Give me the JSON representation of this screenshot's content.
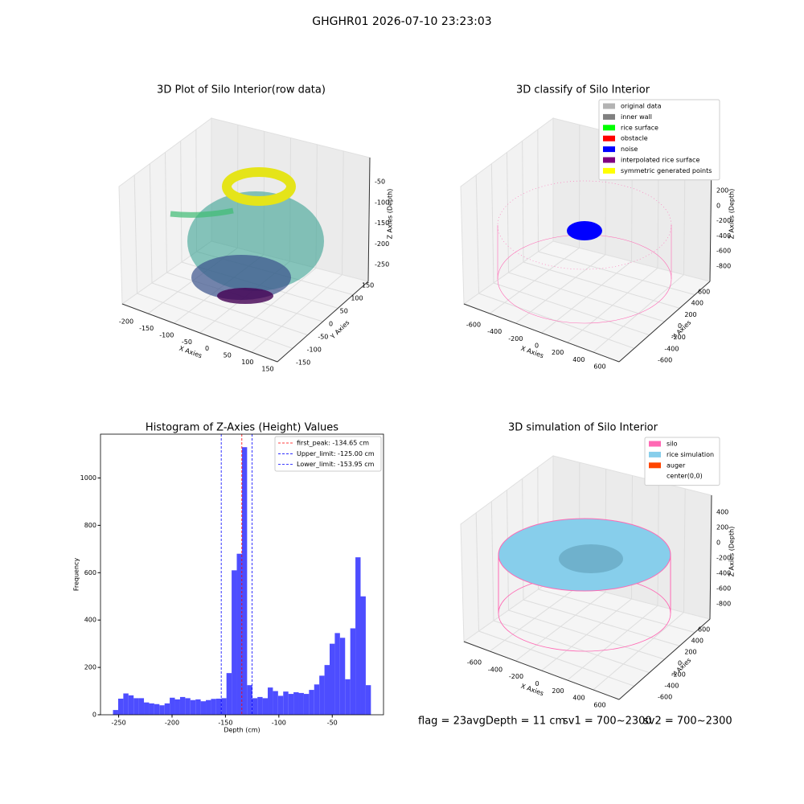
{
  "title": "GHGHR01 2026-07-10 23:23:03",
  "status": [
    "flag = 23",
    "avgDepth = 11 cm",
    "sv1 = 700~2300",
    "sv2 = 700~2300"
  ],
  "chart_data": [
    {
      "type": "scatter3d",
      "title": "3D Plot of Silo Interior(row data)",
      "xlabel": "X Axies",
      "ylabel": "Y Axies",
      "zlabel": "Z Axies (Depth)",
      "xticks": [
        -200,
        -150,
        -100,
        -50,
        0,
        50,
        100,
        150
      ],
      "yticks": [
        150,
        100,
        50,
        0,
        -50,
        -100,
        -150
      ],
      "zticks": [
        -50,
        -100,
        -150,
        -200,
        -250
      ]
    },
    {
      "type": "scatter3d",
      "title": "3D classify of Silo Interior",
      "xlabel": "X Axies",
      "ylabel": "Y Axies",
      "zlabel": "Z Axies (Depth)",
      "xticks": [
        -600,
        -400,
        -200,
        0,
        200,
        400,
        600
      ],
      "yticks": [
        600,
        400,
        200,
        0,
        -200,
        -400,
        -600
      ],
      "zticks": [
        200,
        0,
        -200,
        -400,
        -600,
        -800
      ],
      "legend": [
        {
          "name": "original data",
          "color": "#b3b3b3"
        },
        {
          "name": "inner wall",
          "color": "#808080"
        },
        {
          "name": "rice surface",
          "color": "#00ff00"
        },
        {
          "name": "obstacle",
          "color": "#ff0000"
        },
        {
          "name": "noise",
          "color": "#0000ff"
        },
        {
          "name": "interpolated rice surface",
          "color": "#800080"
        },
        {
          "name": "symmetric generated points",
          "color": "#ffff00"
        }
      ]
    },
    {
      "type": "histogram",
      "title": "Histogram of Z-Axies (Height) Values",
      "xlabel": "Depth (cm)",
      "ylabel": "Frequency",
      "color": "#4d4dff",
      "bins": [
        -255.3,
        -250.47,
        -245.64,
        -240.81,
        -235.98,
        -231.15,
        -226.32,
        -221.49,
        -216.66,
        -211.83,
        -207.0,
        -202.17,
        -197.34,
        -192.51,
        -187.68,
        -182.85,
        -178.02,
        -173.19,
        -168.36,
        -163.53,
        -158.7,
        -153.87,
        -149.04,
        -144.21,
        -139.38,
        -134.55,
        -129.72,
        -124.89,
        -120.06,
        -115.23,
        -110.4,
        -105.57,
        -100.74,
        -95.91,
        -91.08,
        -86.25,
        -81.42,
        -76.59,
        -71.76,
        -66.93,
        -62.1,
        -57.27,
        -52.44,
        -47.61,
        -42.78,
        -37.95,
        -33.12,
        -28.29,
        -23.46,
        -18.63,
        -13.8
      ],
      "values": [
        20,
        68,
        90,
        82,
        70,
        70,
        52,
        48,
        45,
        40,
        48,
        72,
        65,
        75,
        70,
        62,
        65,
        57,
        62,
        67,
        68,
        70,
        176,
        610,
        680,
        1130,
        125,
        70,
        75,
        70,
        115,
        100,
        80,
        98,
        88,
        95,
        92,
        88,
        105,
        128,
        165,
        210,
        300,
        345,
        325,
        150,
        365,
        665,
        500,
        125
      ],
      "xlim": [
        -267,
        -2
      ],
      "ylim": [
        0,
        1185
      ],
      "xticks": [
        -250,
        -200,
        -150,
        -100,
        -50
      ],
      "yticks": [
        0,
        200,
        400,
        600,
        800,
        1000
      ],
      "vlines": [
        {
          "name": "first_peak: -134.65 cm",
          "value": -134.65,
          "color": "#ff0000"
        },
        {
          "name": "Upper_limit: -125.00 cm",
          "value": -125.0,
          "color": "#0000ff"
        },
        {
          "name": "Lower_limit: -153.95 cm",
          "value": -153.95,
          "color": "#0000ff"
        }
      ]
    },
    {
      "type": "surface3d",
      "title": "3D simulation of Silo Interior",
      "xlabel": "X Axies",
      "ylabel": "Y Axies",
      "zlabel": "Z Axies (Depth)",
      "xticks": [
        -600,
        -400,
        -200,
        0,
        200,
        400,
        600
      ],
      "yticks": [
        600,
        400,
        200,
        0,
        -200,
        -400,
        -600
      ],
      "zticks": [
        400,
        200,
        0,
        -200,
        -400,
        -600,
        -800
      ],
      "legend": [
        {
          "name": "silo",
          "color": "#ff69b4"
        },
        {
          "name": "rice simulation",
          "color": "#87ceeb"
        },
        {
          "name": "auger",
          "color": "#ff4500"
        },
        {
          "name": "center(0,0)",
          "color": "#ffffff"
        }
      ]
    }
  ]
}
